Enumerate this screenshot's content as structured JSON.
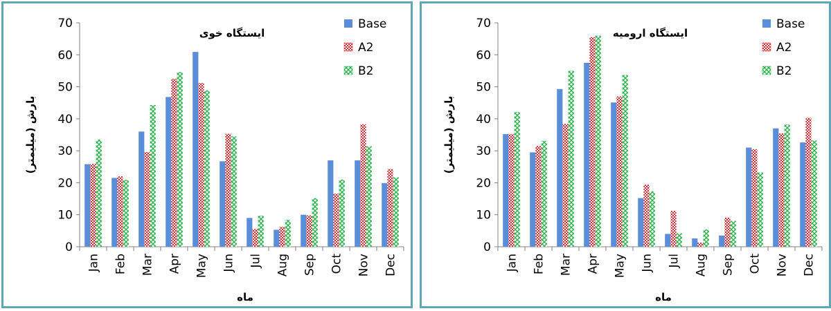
{
  "chart_data": [
    {
      "type": "bar",
      "title": "ایستگاه خوی",
      "xlabel": "ماه",
      "ylabel": "بارش (میلیمتر)",
      "ylim": [
        0,
        70
      ],
      "yticks": [
        0,
        10,
        20,
        30,
        40,
        50,
        60,
        70
      ],
      "categories": [
        "Jan",
        "Feb",
        "Mar",
        "Apr",
        "May",
        "Jun",
        "Jul",
        "Aug",
        "Sep",
        "Oct",
        "Nov",
        "Dec"
      ],
      "legend_position": "top-right",
      "grid": false,
      "series": [
        {
          "name": "Base",
          "color": "#5b8ed8",
          "pattern": "solid",
          "values": [
            25.8,
            21.5,
            36.0,
            46.8,
            60.9,
            26.7,
            9.0,
            5.3,
            10.0,
            27.0,
            27.0,
            19.9
          ]
        },
        {
          "name": "A2",
          "color": "#e8202a",
          "pattern": "checker",
          "values": [
            25.9,
            22.0,
            29.6,
            52.5,
            51.2,
            35.3,
            5.5,
            6.2,
            9.8,
            16.6,
            38.3,
            24.3
          ]
        },
        {
          "name": "B2",
          "color": "#2bb24c",
          "pattern": "diamond",
          "values": [
            33.5,
            20.9,
            44.3,
            54.6,
            48.9,
            34.5,
            9.7,
            8.4,
            15.2,
            21.0,
            31.4,
            21.7
          ]
        }
      ]
    },
    {
      "type": "bar",
      "title": "ایستگاه ارومیه",
      "xlabel": "ماه",
      "ylabel": "بارش (میلیمتر)",
      "ylim": [
        0,
        70
      ],
      "yticks": [
        0,
        10,
        20,
        30,
        40,
        50,
        60,
        70
      ],
      "categories": [
        "Jan",
        "Feb",
        "Mar",
        "Apr",
        "May",
        "Jun",
        "Jul",
        "Aug",
        "Sep",
        "Oct",
        "Nov",
        "Dec"
      ],
      "legend_position": "top-right",
      "grid": false,
      "series": [
        {
          "name": "Base",
          "color": "#5b8ed8",
          "pattern": "solid",
          "values": [
            35.2,
            29.5,
            49.3,
            57.5,
            45.1,
            15.2,
            4.0,
            2.6,
            3.5,
            31.0,
            37.0,
            32.6
          ]
        },
        {
          "name": "A2",
          "color": "#e8202a",
          "pattern": "checker",
          "values": [
            35.2,
            31.5,
            38.4,
            65.5,
            47.0,
            19.4,
            11.2,
            1.3,
            9.1,
            30.5,
            35.4,
            40.3
          ]
        },
        {
          "name": "B2",
          "color": "#2bb24c",
          "pattern": "diamond",
          "values": [
            42.1,
            33.1,
            55.0,
            66.0,
            53.7,
            17.3,
            4.2,
            5.4,
            8.1,
            23.2,
            38.2,
            33.2
          ]
        }
      ]
    }
  ]
}
